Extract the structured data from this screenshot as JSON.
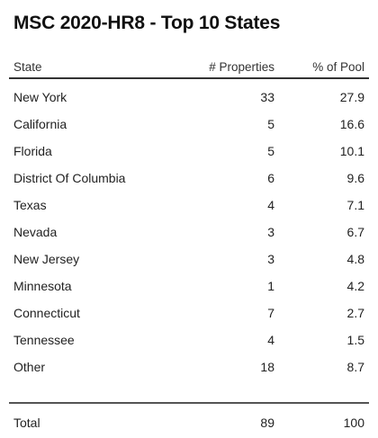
{
  "title": "MSC 2020-HR8 - Top 10 States",
  "columns": {
    "state": "State",
    "properties": "# Properties",
    "pool": "% of Pool"
  },
  "chart_data": {
    "type": "table",
    "title": "MSC 2020-HR8 - Top 10 States",
    "columns": [
      "State",
      "# Properties",
      "% of Pool"
    ],
    "rows": [
      {
        "state": "New York",
        "properties": "33",
        "pool": "27.9"
      },
      {
        "state": "California",
        "properties": "5",
        "pool": "16.6"
      },
      {
        "state": "Florida",
        "properties": "5",
        "pool": "10.1"
      },
      {
        "state": "District Of Columbia",
        "properties": "6",
        "pool": "9.6"
      },
      {
        "state": "Texas",
        "properties": "4",
        "pool": "7.1"
      },
      {
        "state": "Nevada",
        "properties": "3",
        "pool": "6.7"
      },
      {
        "state": "New Jersey",
        "properties": "3",
        "pool": "4.8"
      },
      {
        "state": "Minnesota",
        "properties": "1",
        "pool": "4.2"
      },
      {
        "state": "Connecticut",
        "properties": "7",
        "pool": "2.7"
      },
      {
        "state": "Tennessee",
        "properties": "4",
        "pool": "1.5"
      },
      {
        "state": "Other",
        "properties": "18",
        "pool": "8.7"
      }
    ],
    "total": {
      "label": "Total",
      "properties": "89",
      "pool": "100"
    }
  }
}
